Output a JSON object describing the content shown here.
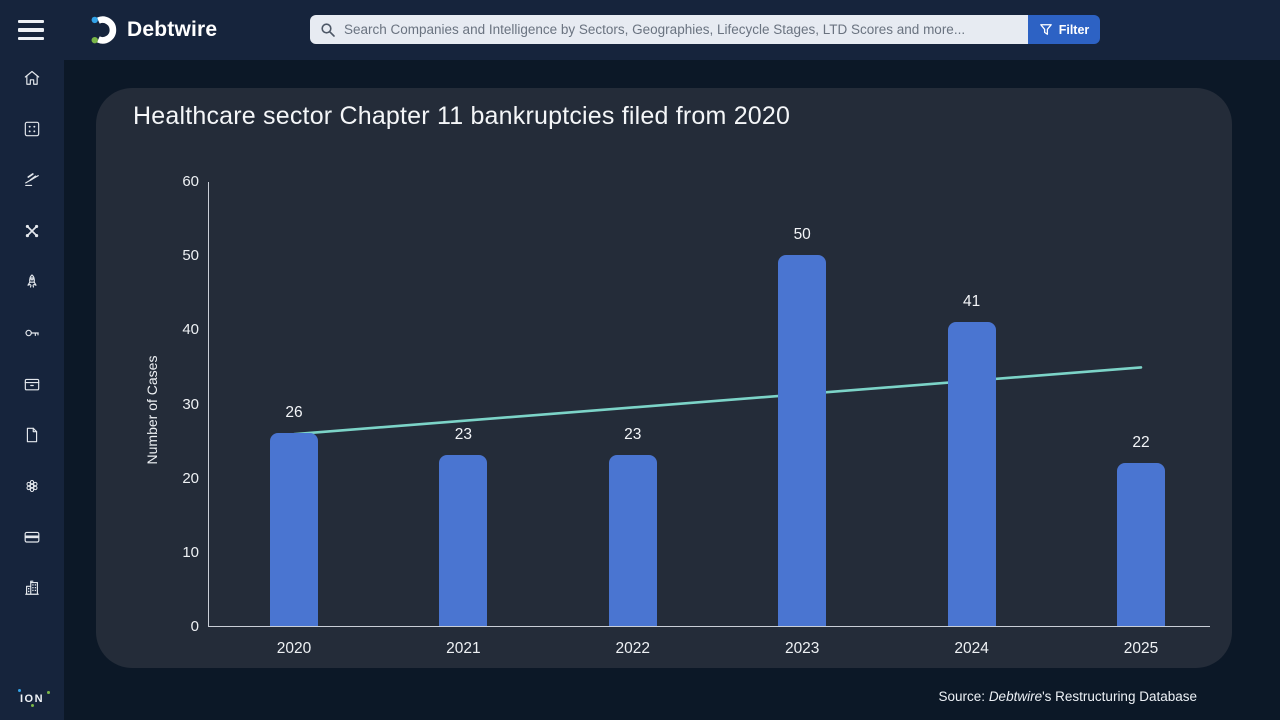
{
  "topbar": {
    "brand": "Debtwire",
    "search_placeholder": "Search Companies and Intelligence by Sectors, Geographies, Lifecycle Stages, LTD Scores and more...",
    "filter_label": "Filter"
  },
  "sidebar": {
    "icons": [
      "home-icon",
      "apps-grid-icon",
      "gavel-icon",
      "network-icon",
      "rocket-icon",
      "key-icon",
      "archive-box-icon",
      "document-icon",
      "cluster-icon",
      "credit-card-icon",
      "building-icon"
    ],
    "footer_logo": "ION"
  },
  "chart_data": {
    "type": "bar",
    "title": "Healthcare sector Chapter 11 bankruptcies filed from 2020",
    "categories": [
      "2020",
      "2021",
      "2022",
      "2023",
      "2024",
      "2025"
    ],
    "values": [
      26,
      23,
      23,
      50,
      41,
      22
    ],
    "ylabel": "Number of Cases",
    "xlabel": "",
    "ylim": [
      0,
      60
    ],
    "yticks": [
      0,
      10,
      20,
      30,
      40,
      50,
      60
    ],
    "grid": false,
    "legend": false,
    "trendline": {
      "type": "linear",
      "start_value": 26,
      "end_value": 35
    },
    "bar_color": "#4a75d1",
    "trend_color": "#7cd4c8"
  },
  "footer": {
    "source_prefix": "Source: ",
    "source_name": "Debtwire",
    "source_suffix": "'s Restructuring Database"
  },
  "colors": {
    "topbar_bg": "#16243c",
    "page_bg": "#0c1827",
    "panel_bg": "#242c39",
    "accent_blue": "#2d62c4",
    "search_bg": "#e7ebf2",
    "axis_line": "#c9cfd7",
    "logo_dot_blue": "#33a3e8",
    "logo_dot_green": "#7ab648"
  }
}
